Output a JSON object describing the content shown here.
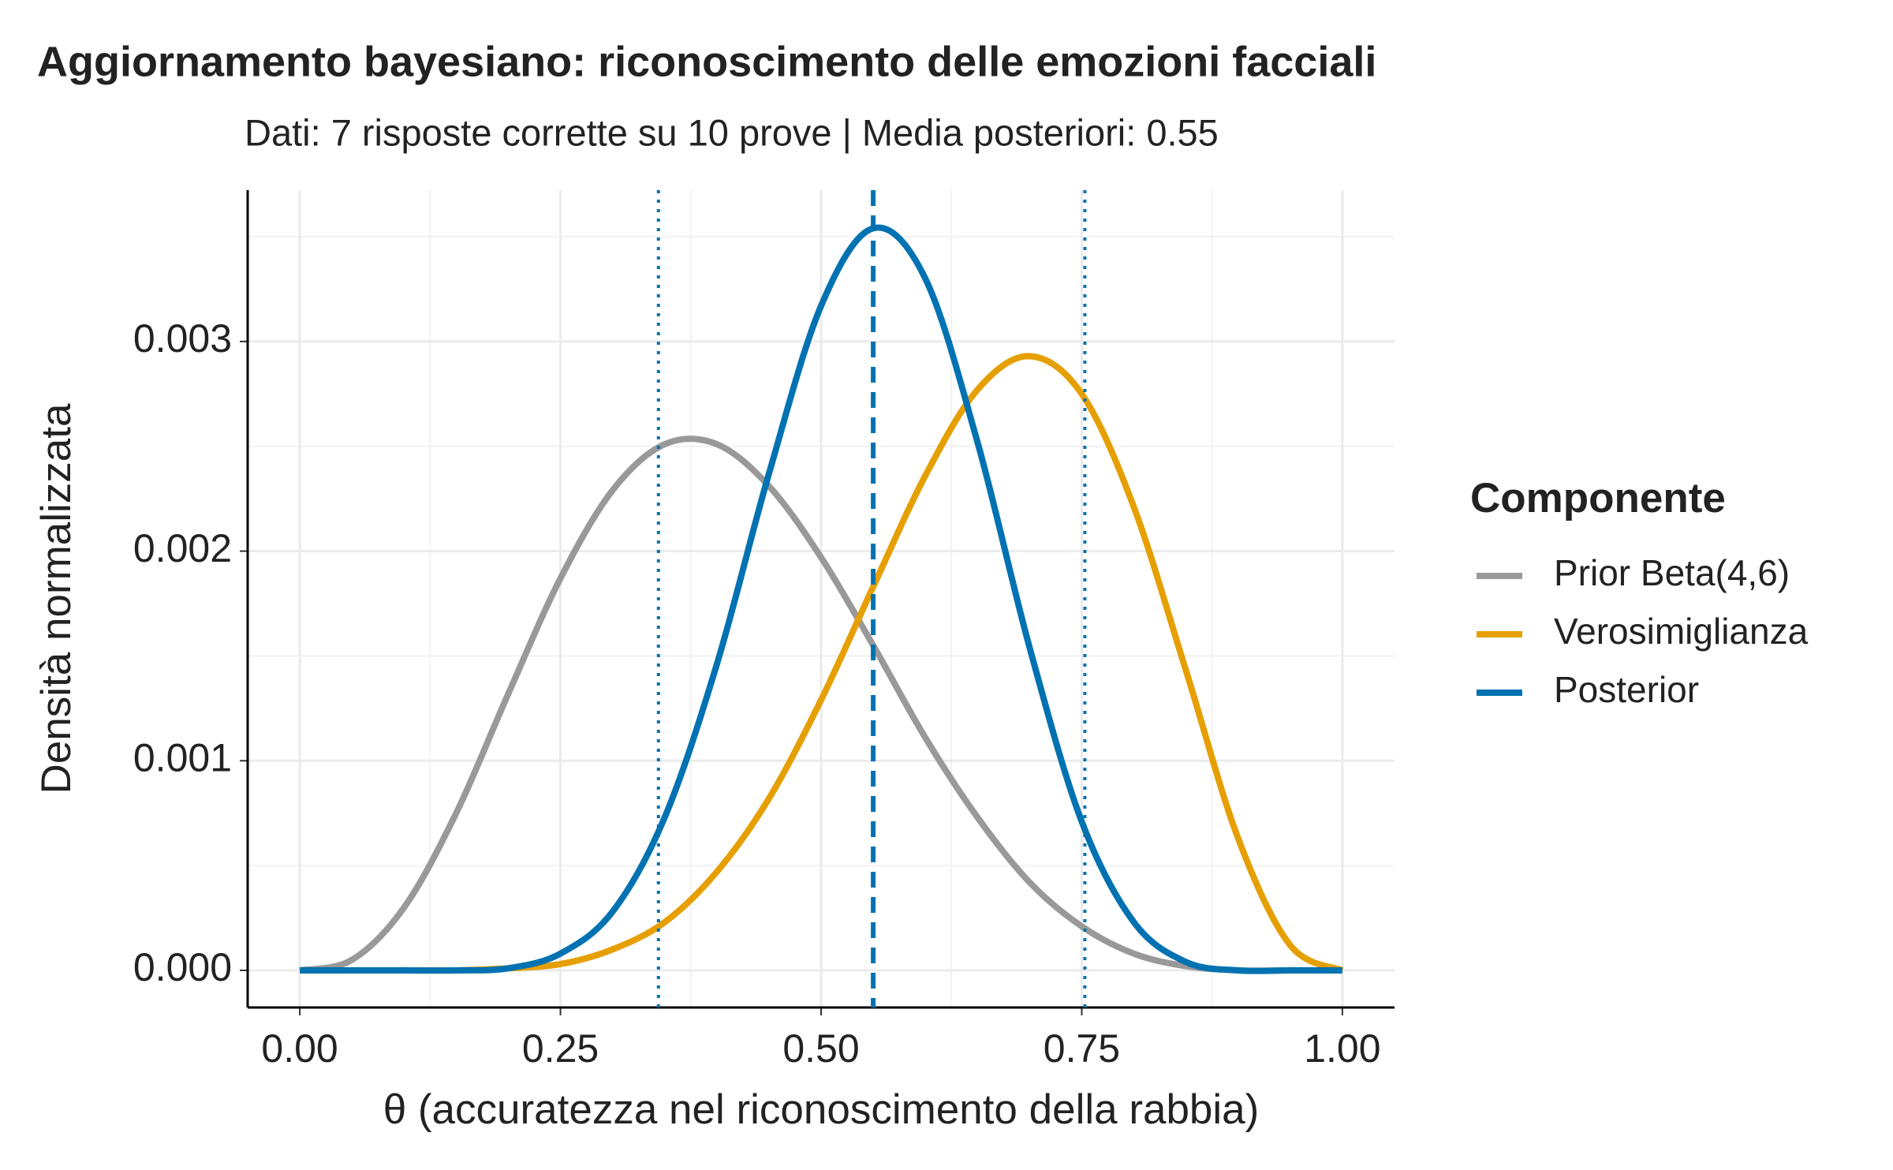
{
  "chart_data": {
    "type": "line",
    "title": "Aggiornamento bayesiano: riconoscimento delle emozioni facciali",
    "subtitle": "Dati: 7 risposte corrette su 10 prove | Media posteriori: 0.55",
    "xlabel": "θ (accuratezza nel riconoscimento della rabbia)",
    "ylabel": "Densità normalizzata",
    "legend_title": "Componente",
    "legend": "right",
    "grid": true,
    "x": [
      0,
      0.05,
      0.1,
      0.15,
      0.2,
      0.25,
      0.3,
      0.35,
      0.4,
      0.45,
      0.5,
      0.55,
      0.6,
      0.65,
      0.7,
      0.75,
      0.8,
      0.85,
      0.9,
      0.95,
      1
    ],
    "series": [
      {
        "name": "Prior Beta(4,6)",
        "color": "#999999",
        "values": [
          0,
          5e-05,
          0.0003,
          0.00075,
          0.00132,
          0.00187,
          0.00229,
          0.00251,
          0.00251,
          0.00231,
          0.00197,
          0.00155,
          0.00111,
          0.00073,
          0.00042,
          0.00021,
          8e-05,
          2e-05,
          0,
          0,
          0
        ]
      },
      {
        "name": "Verosimiglianza",
        "color": "#E69F00",
        "values": [
          0,
          0,
          0,
          0,
          1e-05,
          3e-05,
          0.0001,
          0.00023,
          0.00047,
          0.00082,
          0.00129,
          0.00183,
          0.00236,
          0.00277,
          0.00293,
          0.00275,
          0.00221,
          0.00143,
          0.00063,
          0.00012,
          0
        ]
      },
      {
        "name": "Posterior",
        "color": "#0072B2",
        "values": [
          0,
          0,
          0,
          0,
          1e-05,
          8e-05,
          0.00028,
          0.00073,
          0.00146,
          0.00237,
          0.00317,
          0.00354,
          0.0033,
          0.00252,
          0.00154,
          0.00071,
          0.00023,
          4e-05,
          0,
          0,
          0
        ]
      }
    ],
    "vlines": [
      {
        "value": 0.55,
        "style": "dashed",
        "color": "#0072B2"
      },
      {
        "value": 0.344,
        "style": "dotted",
        "color": "#0072B2"
      },
      {
        "value": 0.753,
        "style": "dotted",
        "color": "#0072B2"
      }
    ],
    "xlim": [
      -0.05,
      1.05
    ],
    "ylim": [
      -0.000177,
      0.003722
    ],
    "xticks": [
      {
        "value": 0,
        "label": "0.00"
      },
      0.25,
      {
        "value": 0.5,
        "label": "0.50"
      },
      0.75,
      {
        "value": 1,
        "label": "1.00"
      }
    ],
    "yticks": [
      {
        "value": 0,
        "label": "0.000"
      },
      0.001,
      0.002,
      0.003
    ],
    "xminor": [
      0.125,
      0.375,
      0.625,
      0.875
    ],
    "yminor": [
      0.0005,
      0.0015,
      0.0025,
      0.0035
    ]
  }
}
